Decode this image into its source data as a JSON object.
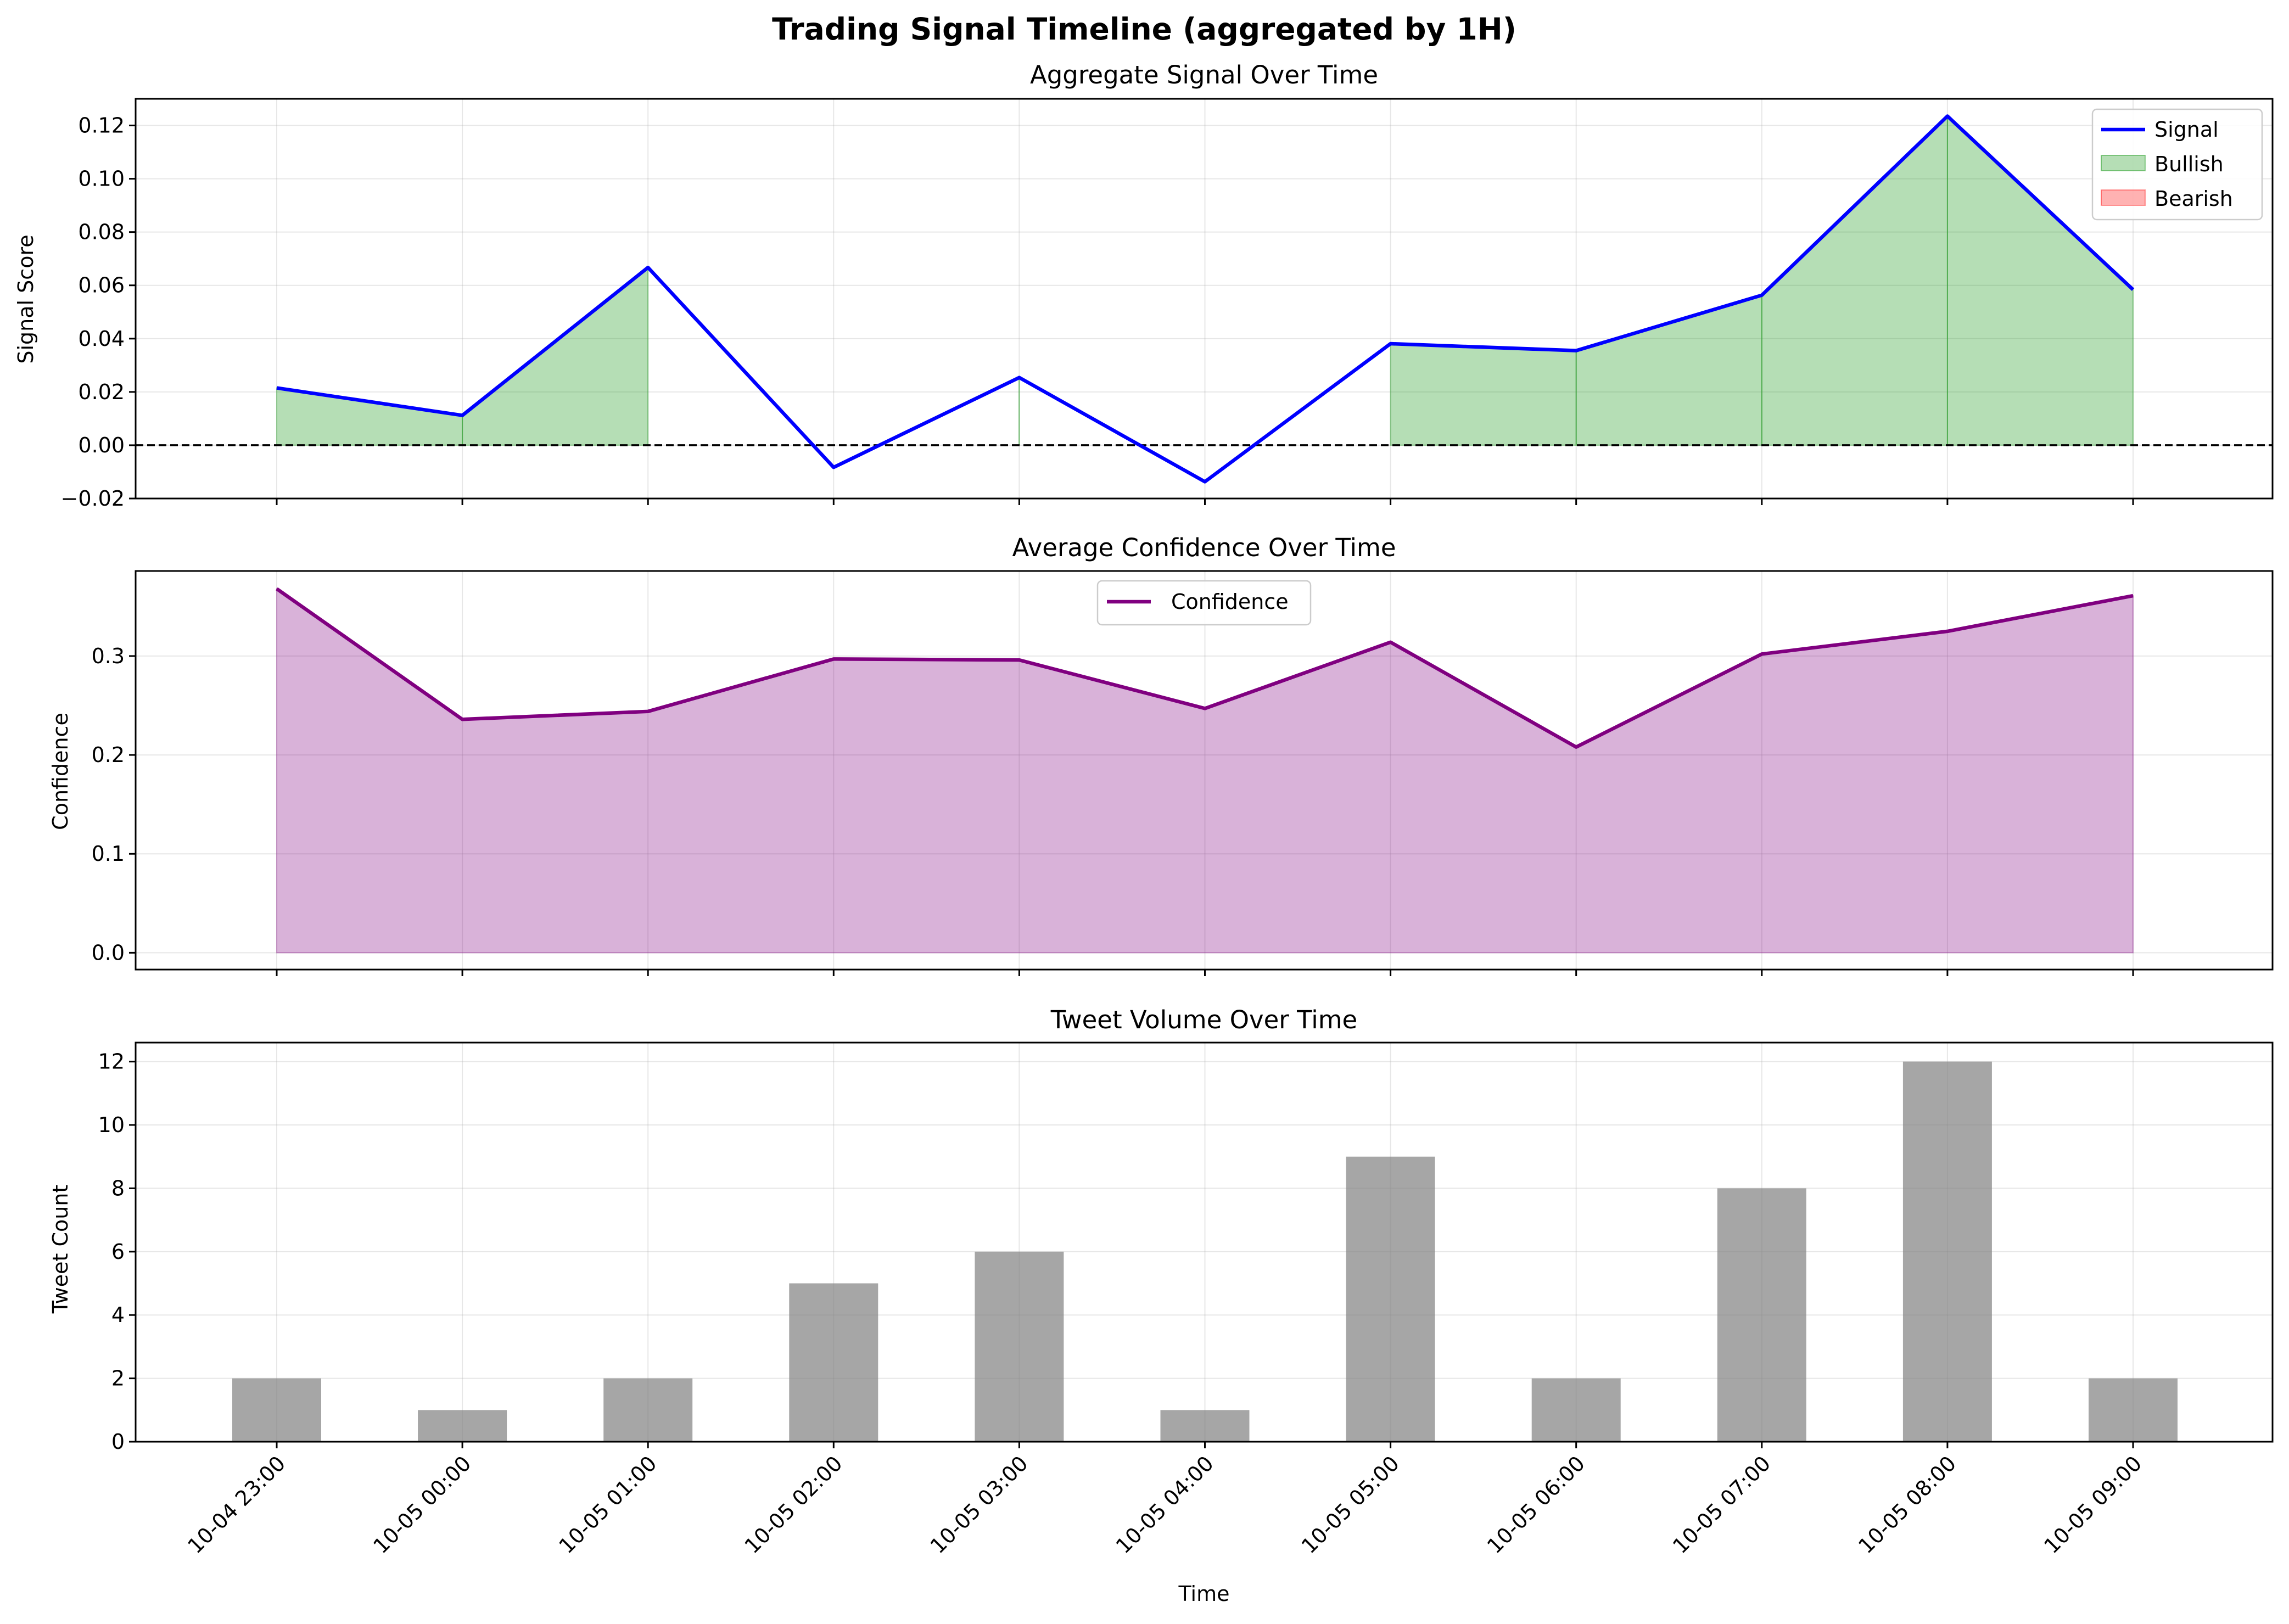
{
  "chart_data": {
    "title": "Trading Signal Timeline (aggregated by 1H)",
    "x": [
      "10-04 23:00",
      "10-05 00:00",
      "10-05 01:00",
      "10-05 02:00",
      "10-05 03:00",
      "10-05 04:00",
      "10-05 05:00",
      "10-05 06:00",
      "10-05 07:00",
      "10-05 08:00",
      "10-05 09:00"
    ],
    "xlabel": "Time",
    "panels": [
      {
        "type": "line",
        "title": "Aggregate Signal Over Time",
        "ylabel": "Signal Score",
        "ylim": [
          -0.02,
          0.13
        ],
        "yticks": [
          -0.02,
          0.0,
          0.02,
          0.04,
          0.06,
          0.08,
          0.1,
          0.12
        ],
        "ytick_labels": [
          "−0.02",
          "0.00",
          "0.02",
          "0.04",
          "0.06",
          "0.08",
          "0.10",
          "0.12"
        ],
        "series": [
          {
            "name": "Signal",
            "color": "#0000ff",
            "values": [
              0.0215,
              0.0112,
              0.0667,
              -0.0083,
              0.0254,
              -0.0137,
              0.0381,
              0.0355,
              0.0563,
              0.1235,
              0.0584
            ]
          }
        ],
        "fills": [
          {
            "name": "Bullish",
            "color": "#2ca02c"
          },
          {
            "name": "Bearish",
            "color": "#ff0000"
          }
        ],
        "zero_line": true,
        "legend": "upper-right",
        "grid": true
      },
      {
        "type": "area",
        "title": "Average Confidence Over Time",
        "ylabel": "Confidence",
        "ylim": [
          -0.017,
          0.386
        ],
        "yticks": [
          0.0,
          0.1,
          0.2,
          0.3
        ],
        "ytick_labels": [
          "0.0",
          "0.1",
          "0.2",
          "0.3"
        ],
        "series": [
          {
            "name": "Confidence",
            "color": "#800080",
            "values": [
              0.368,
              0.236,
              0.244,
              0.297,
              0.296,
              0.247,
              0.314,
              0.208,
              0.302,
              0.325,
              0.361
            ]
          }
        ],
        "legend": "upper-center",
        "grid": true
      },
      {
        "type": "bar",
        "title": "Tweet Volume Over Time",
        "ylabel": "Tweet Count",
        "ylim": [
          0,
          12.6
        ],
        "yticks": [
          0,
          2,
          4,
          6,
          8,
          10,
          12
        ],
        "ytick_labels": [
          "0",
          "2",
          "4",
          "6",
          "8",
          "10",
          "12"
        ],
        "series": [
          {
            "name": "Tweet Count",
            "color": "#808080",
            "values": [
              2,
              1,
              2,
              5,
              6,
              1,
              9,
              2,
              8,
              12,
              2
            ]
          }
        ],
        "grid": true
      }
    ]
  }
}
